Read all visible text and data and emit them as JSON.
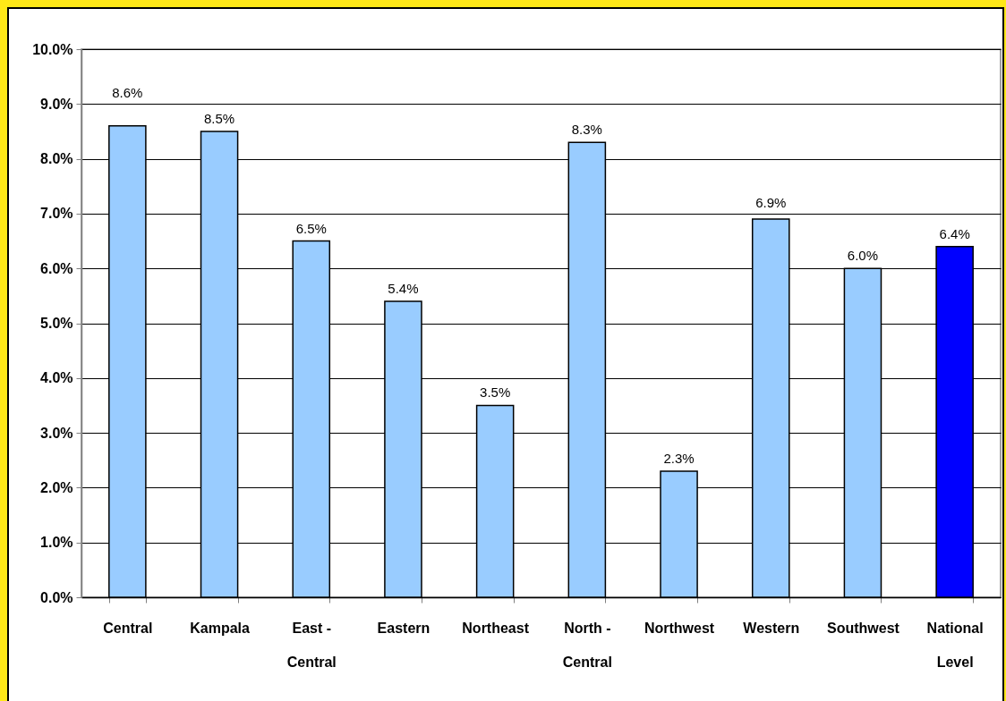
{
  "chart_data": {
    "type": "bar",
    "categories": [
      "Central",
      "Kampala",
      "East - Central",
      "Eastern",
      "Northeast",
      "North - Central",
      "Northwest",
      "Western",
      "Southwest",
      "National Level"
    ],
    "values": [
      8.6,
      8.5,
      6.5,
      5.4,
      3.5,
      8.3,
      2.3,
      6.9,
      6.0,
      6.4
    ],
    "colors": [
      "#99ccff",
      "#99ccff",
      "#99ccff",
      "#99ccff",
      "#99ccff",
      "#99ccff",
      "#99ccff",
      "#99ccff",
      "#99ccff",
      "#0000ff"
    ],
    "value_labels": [
      "8.6%",
      "8.5%",
      "6.5%",
      "5.4%",
      "3.5%",
      "8.3%",
      "2.3%",
      "6.9%",
      "6.0%",
      "6.4%"
    ],
    "ylim": [
      0,
      10
    ],
    "yticks": [
      {
        "value": 0,
        "label": "0.0%"
      },
      {
        "value": 1,
        "label": "1.0%"
      },
      {
        "value": 2,
        "label": "2.0%"
      },
      {
        "value": 3,
        "label": "3.0%"
      },
      {
        "value": 4,
        "label": "4.0%"
      },
      {
        "value": 5,
        "label": "5.0%"
      },
      {
        "value": 6,
        "label": "6.0%"
      },
      {
        "value": 7,
        "label": "7.0%"
      },
      {
        "value": 8,
        "label": "8.0%"
      },
      {
        "value": 9,
        "label": "9.0%"
      },
      {
        "value": 10,
        "label": "10.0%"
      }
    ],
    "grid": "y"
  }
}
